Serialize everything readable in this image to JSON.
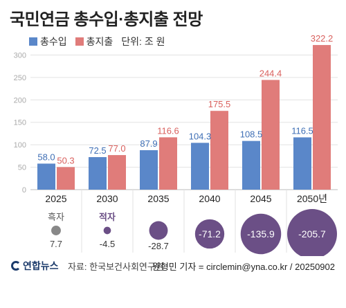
{
  "title": "국민연금 총수입·총지출 전망",
  "legend": {
    "unit": "단위: 조 원"
  },
  "colors": {
    "revenue": "#5a87c9",
    "expenditure": "#e07c7a",
    "bubble": "#6b4f86",
    "label_revenue": "#3f6fb5",
    "label_expenditure": "#d9605d"
  },
  "chart_data": {
    "type": "bar",
    "categories": [
      "2025",
      "2030",
      "2035",
      "2040",
      "2045",
      "2050년"
    ],
    "series": [
      {
        "name": "총수입",
        "values": [
          58.0,
          72.5,
          87.9,
          104.3,
          108.5,
          116.5
        ]
      },
      {
        "name": "총지출",
        "values": [
          50.3,
          77.0,
          116.6,
          175.5,
          244.4,
          322.2
        ]
      }
    ],
    "value_labels": {
      "총수입": [
        "58.0",
        "72.5",
        "87.9",
        "104.3",
        "108.5",
        "116.5"
      ],
      "총지출": [
        "50.3",
        "77.0",
        "116.6",
        "175.5",
        "244.4",
        "322.2"
      ]
    },
    "ylim": [
      0,
      330
    ],
    "yticks": [
      0,
      50,
      100,
      150,
      200,
      250,
      300
    ],
    "balance": {
      "surplus_label": "흑자",
      "deficit_label": "적자",
      "values": [
        7.7,
        -4.5,
        -28.7,
        -71.2,
        -135.9,
        -205.7
      ],
      "value_labels": [
        "7.7",
        "-4.5",
        "-28.7",
        "-71.2",
        "-135.9",
        "-205.7"
      ]
    }
  },
  "footer": {
    "logo": "연합뉴스",
    "source": "자료: 한국보건사회연구원",
    "credit": "원형민 기자 = circlemin@yna.co.kr / 20250902"
  }
}
